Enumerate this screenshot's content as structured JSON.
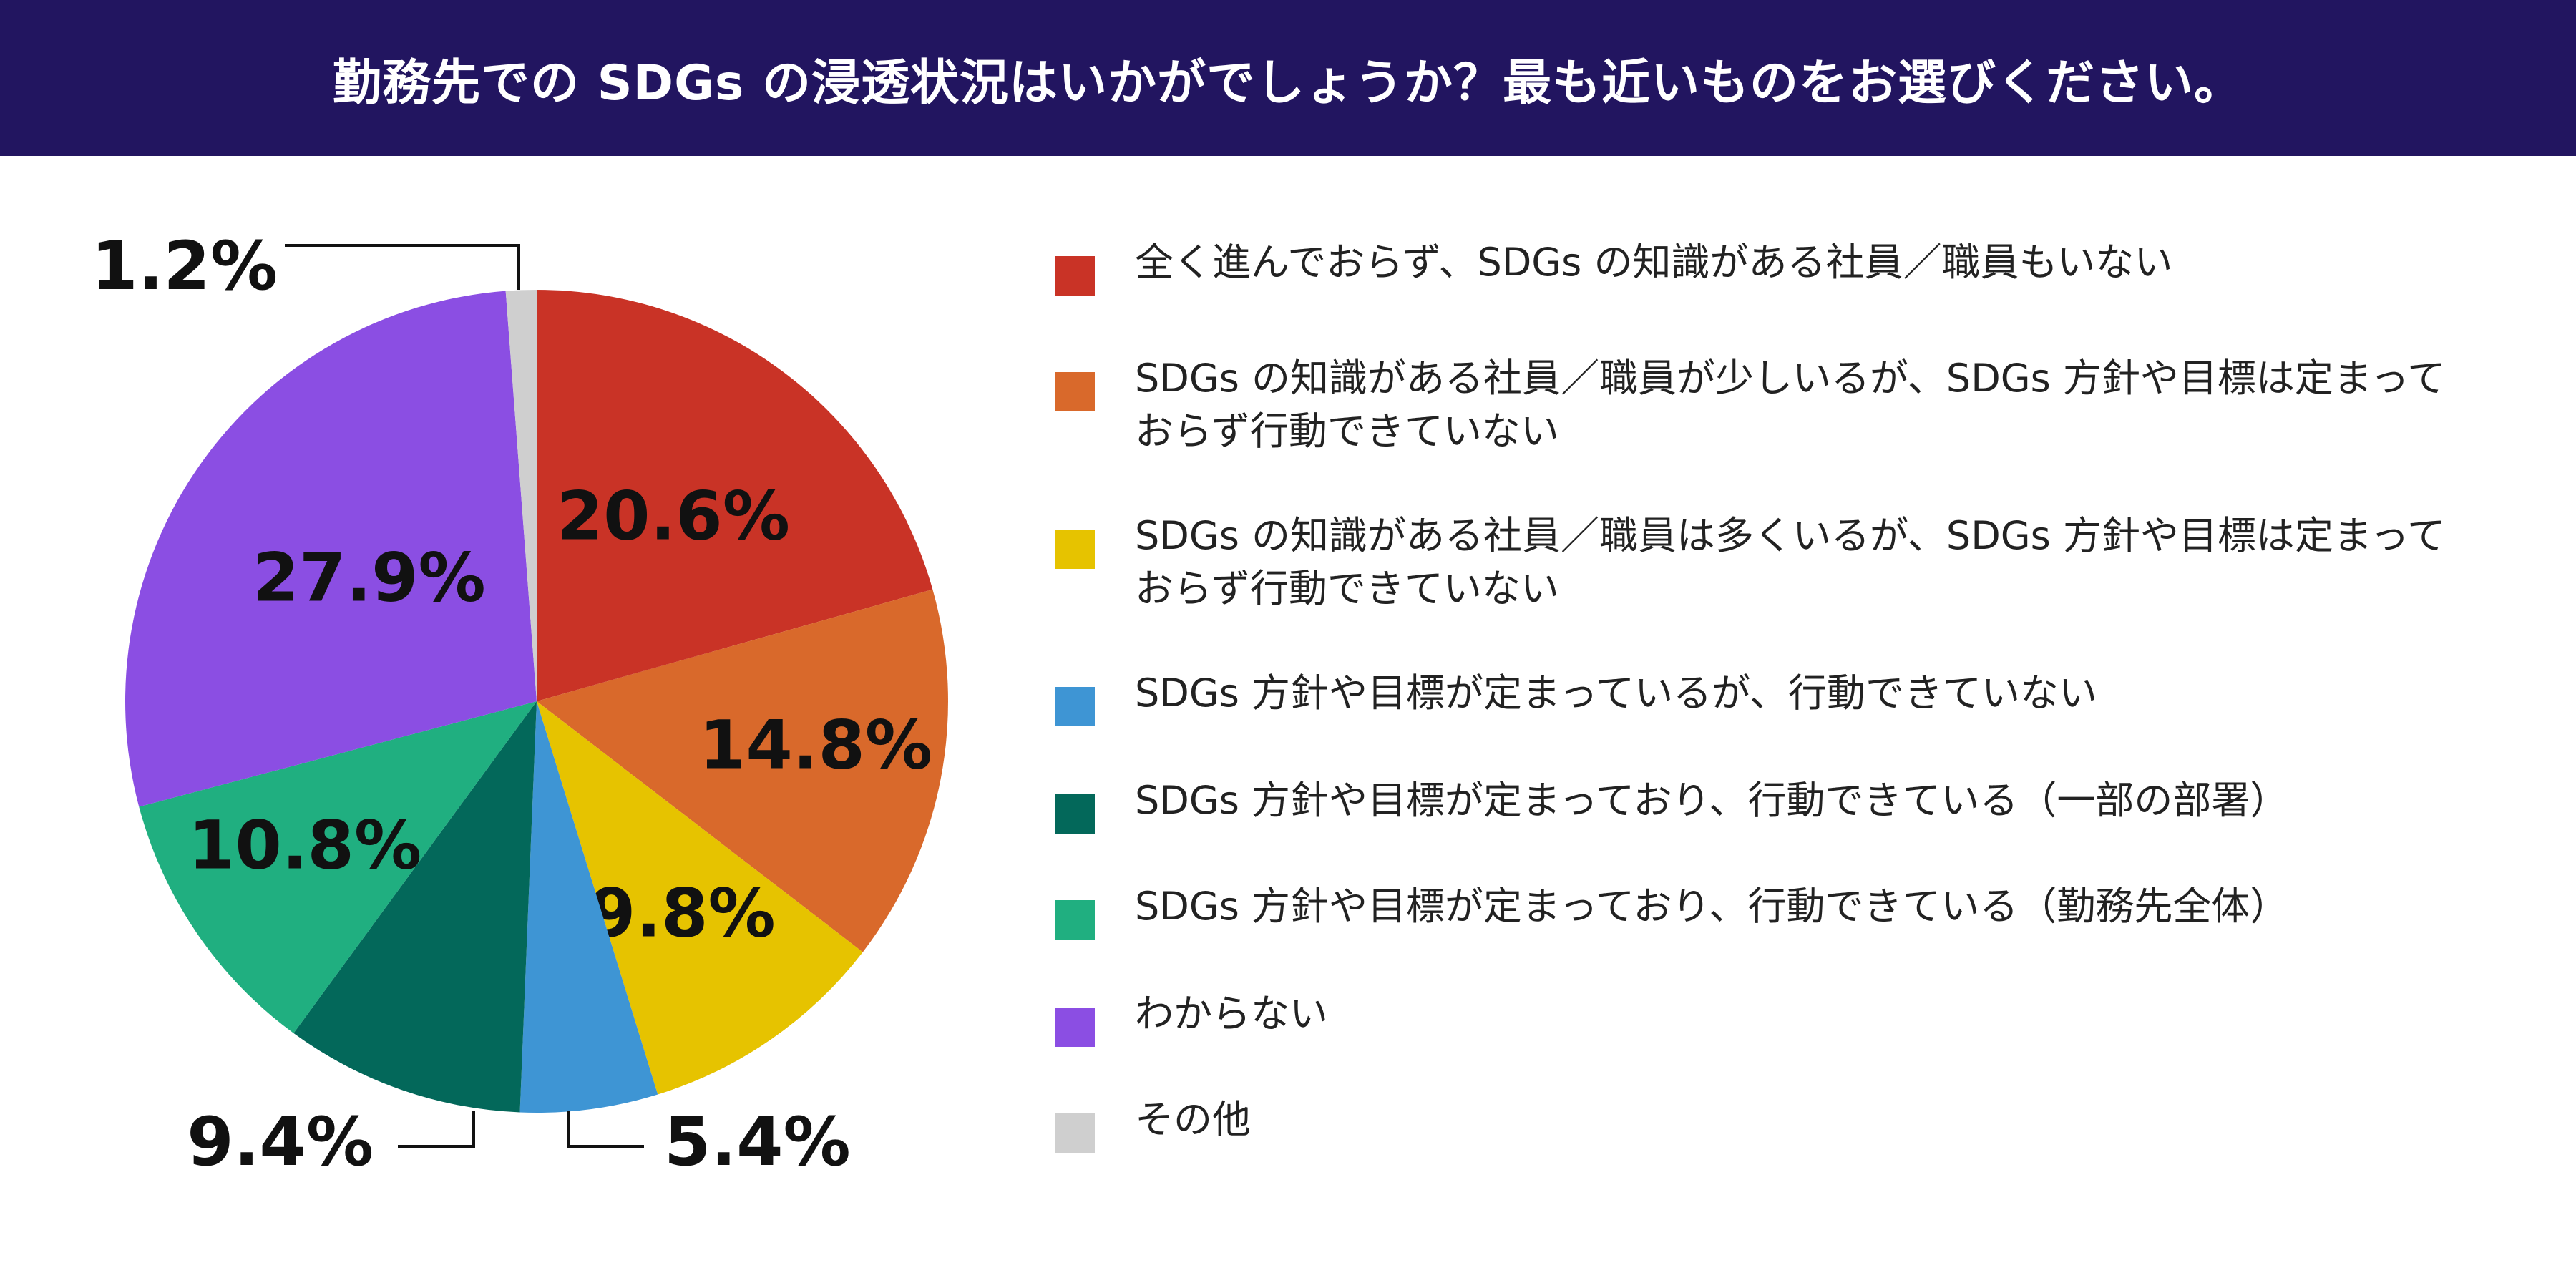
{
  "header": {
    "title": "勤務先での SDGs の浸透状況はいかがでしょうか？最も近いものをお選びください。",
    "background": "#221560"
  },
  "chart_data": {
    "type": "pie",
    "title": "勤務先での SDGs の浸透状況はいかがでしょうか？最も近いものをお選びください。",
    "legend_position": "right",
    "slices": [
      {
        "label": "全く進んでおらず、SDGs の知識がある社員／職員もいない",
        "value": 20.6,
        "value_label": "20.6%",
        "color": "#c93326"
      },
      {
        "label": "SDGs の知識がある社員／職員が少しいるが、SDGs 方針や目標は定まって\nおらず行動できていない",
        "value": 14.8,
        "value_label": "14.8%",
        "color": "#d9692b"
      },
      {
        "label": "SDGs の知識がある社員／職員は多くいるが、SDGs 方針や目標は定まって\nおらず行動できていない",
        "value": 9.8,
        "value_label": "9.8%",
        "color": "#e6c300"
      },
      {
        "label": "SDGs 方針や目標が定まっているが、行動できていない",
        "value": 5.4,
        "value_label": "5.4%",
        "color": "#3e95d4"
      },
      {
        "label": "SDGs 方針や目標が定まっており、行動できている（一部の部署）",
        "value": 9.4,
        "value_label": "9.4%",
        "color": "#03685a"
      },
      {
        "label": "SDGs 方針や目標が定まっており、行動できている（勤務先全体）",
        "value": 10.8,
        "value_label": "10.8%",
        "color": "#20af80"
      },
      {
        "label": "わからない",
        "value": 27.9,
        "value_label": "27.9%",
        "color": "#8b4ee3"
      },
      {
        "label": "その他",
        "value": 1.2,
        "value_label": "1.2%",
        "color": "#cfcfcf"
      }
    ]
  }
}
